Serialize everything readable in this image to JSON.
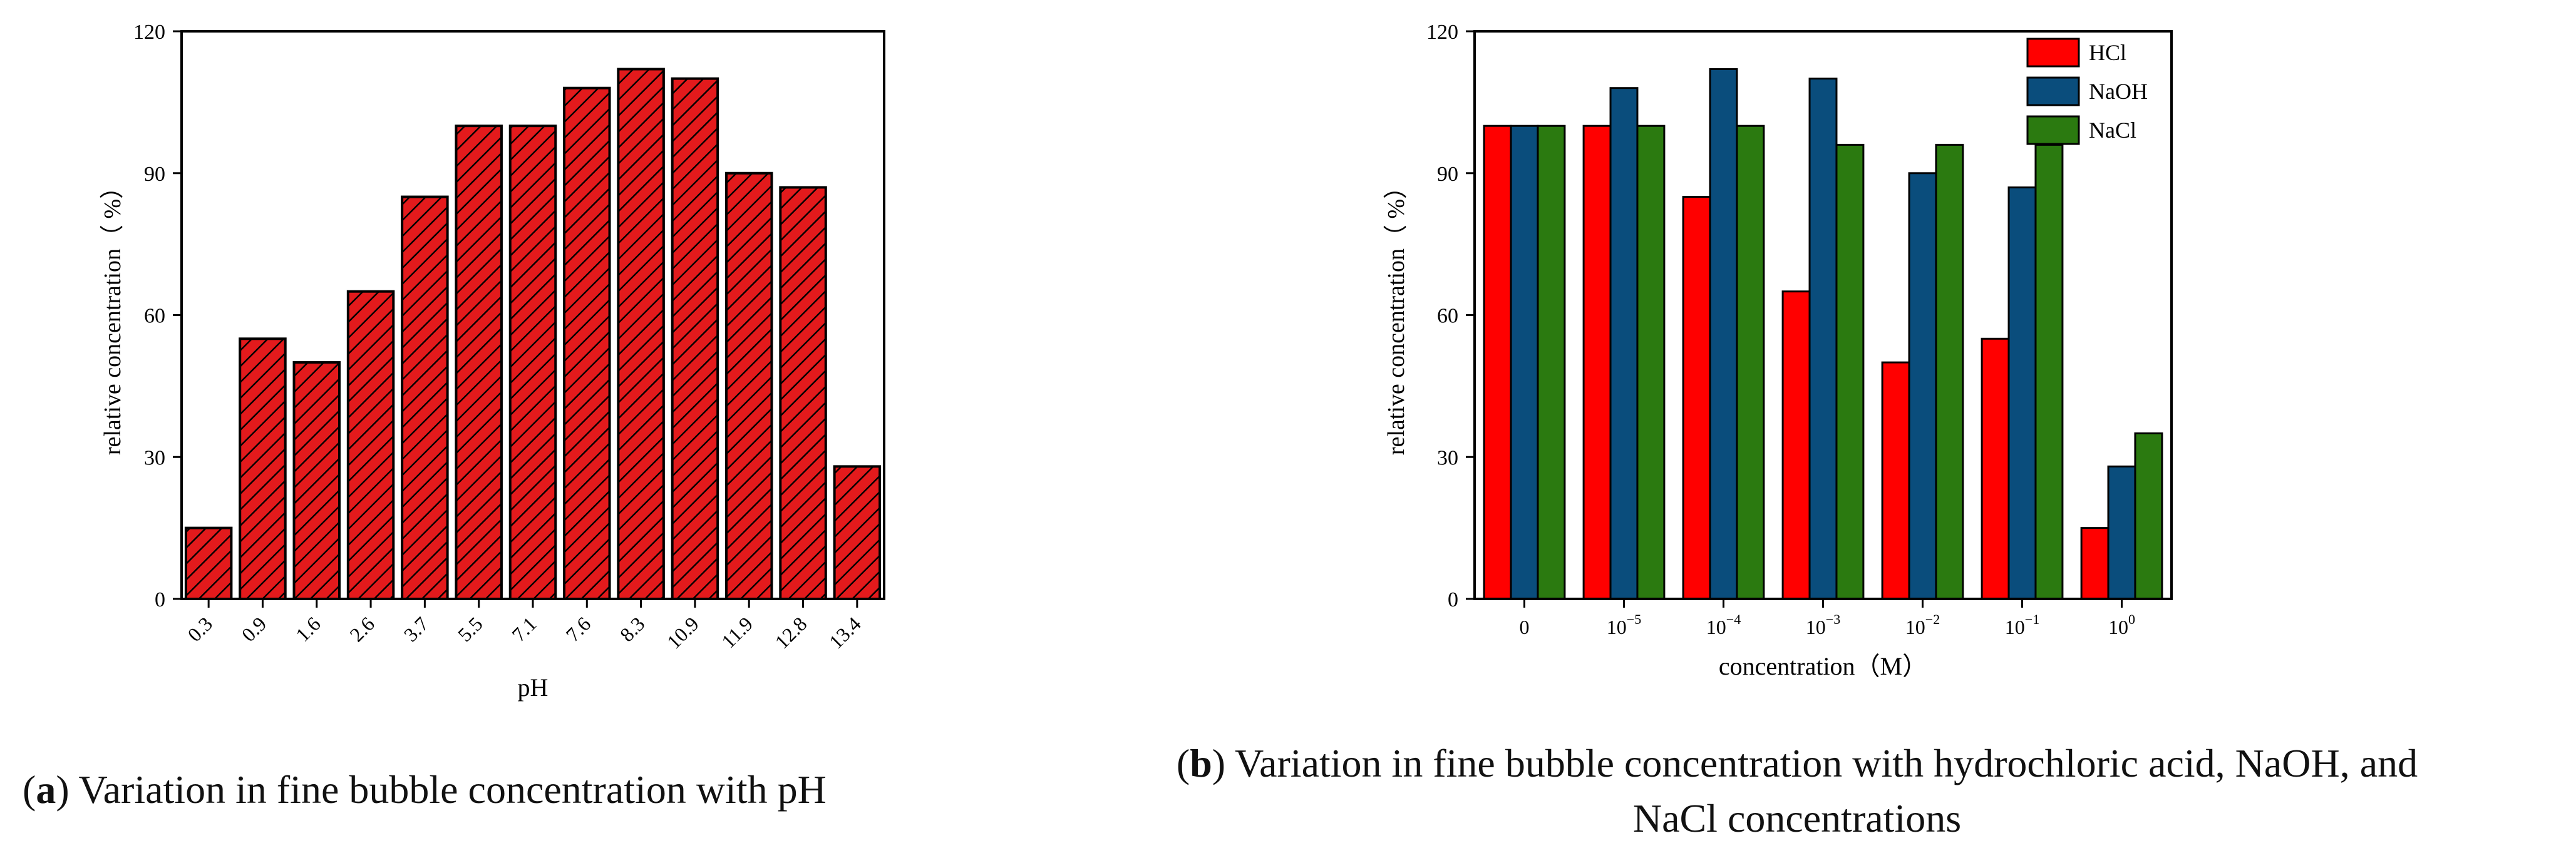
{
  "colors": {
    "chart_a_bar": "#e31a1c",
    "hcl": "#ff0000",
    "naoh": "#0a4d7c",
    "nacl": "#2b7a10"
  },
  "chart_data": [
    {
      "type": "bar",
      "panel": "a",
      "title": "",
      "xlabel": "pH",
      "ylabel": "relative concentration（ %）",
      "categories": [
        "0.3",
        "0.9",
        "1.6",
        "2.6",
        "3.7",
        "5.5",
        "7.1",
        "7.6",
        "8.3",
        "10.9",
        "11.9",
        "12.8",
        "13.4"
      ],
      "values": [
        15,
        55,
        50,
        65,
        85,
        100,
        100,
        108,
        112,
        110,
        90,
        87,
        28
      ],
      "ylim": [
        0,
        120
      ],
      "yticks": [
        "0",
        "30",
        "60",
        "90",
        "120"
      ],
      "pattern": "diagonal-hatch",
      "grid": false
    },
    {
      "type": "bar",
      "panel": "b",
      "title": "",
      "xlabel": "concentration（M）",
      "ylabel": "relative concentration（ %）",
      "categories": [
        {
          "base": "0",
          "exp": ""
        },
        {
          "base": "10",
          "exp": "−5"
        },
        {
          "base": "10",
          "exp": "−4"
        },
        {
          "base": "10",
          "exp": "−3"
        },
        {
          "base": "10",
          "exp": "−2"
        },
        {
          "base": "10",
          "exp": "−1"
        },
        {
          "base": "10",
          "exp": "0"
        }
      ],
      "series": [
        {
          "name": "HCl",
          "values": [
            100,
            100,
            85,
            65,
            50,
            55,
            15
          ]
        },
        {
          "name": "NaOH",
          "values": [
            100,
            108,
            112,
            110,
            90,
            87,
            28
          ]
        },
        {
          "name": "NaCl",
          "values": [
            100,
            100,
            100,
            96,
            96,
            96,
            35
          ]
        }
      ],
      "ylim": [
        0,
        120
      ],
      "yticks": [
        "0",
        "30",
        "60",
        "90",
        "120"
      ],
      "legend": "top-right",
      "grid": false
    }
  ],
  "captions": {
    "a": {
      "letter": "a",
      "text": " Variation in fine bubble concentration with pH"
    },
    "b": {
      "letter": "b",
      "line1": " Variation in fine bubble concentration with hydrochloric acid, NaOH, and",
      "line2": "NaCl concentrations"
    }
  }
}
